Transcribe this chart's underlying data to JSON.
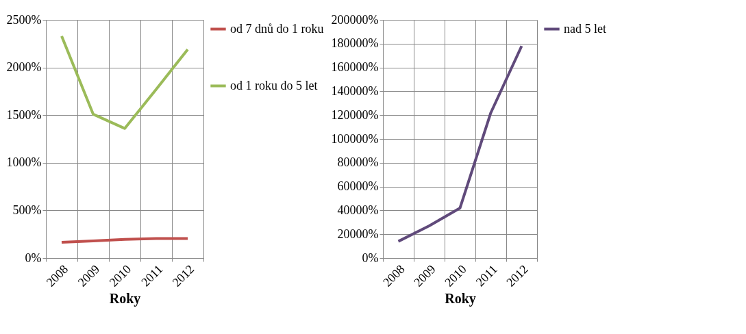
{
  "chart_data": [
    {
      "type": "line",
      "xlabel": "Roky",
      "categories": [
        "2008",
        "2009",
        "2010",
        "2011",
        "2012"
      ],
      "series": [
        {
          "name": "od 7 dnů do 1 roku",
          "color": "#c0504d",
          "values": [
            165,
            180,
            195,
            205,
            205
          ]
        },
        {
          "name": "od 1 roku do 5 let",
          "color": "#9bbb59",
          "values": [
            2330,
            1510,
            1360,
            1770,
            2190
          ]
        }
      ],
      "ylim": [
        0,
        2500
      ],
      "yticks": [
        {
          "value": 0,
          "label": "0%"
        },
        {
          "value": 500,
          "label": "500%"
        },
        {
          "value": 1000,
          "label": "1000%"
        },
        {
          "value": 1500,
          "label": "1500%"
        },
        {
          "value": 2000,
          "label": "2000%"
        },
        {
          "value": 2500,
          "label": "2500%"
        }
      ],
      "grid": true,
      "legend": "right",
      "marker": "none"
    },
    {
      "type": "line",
      "xlabel": "Roky",
      "categories": [
        "2008",
        "2009",
        "2010",
        "2011",
        "2012"
      ],
      "series": [
        {
          "name": "nad 5 let",
          "color": "#604a7b",
          "values": [
            14000,
            27000,
            42000,
            122000,
            178000
          ]
        }
      ],
      "ylim": [
        0,
        200000
      ],
      "yticks": [
        {
          "value": 0,
          "label": "0%"
        },
        {
          "value": 20000,
          "label": "20000%"
        },
        {
          "value": 40000,
          "label": "40000%"
        },
        {
          "value": 60000,
          "label": "60000%"
        },
        {
          "value": 80000,
          "label": "80000%"
        },
        {
          "value": 100000,
          "label": "100000%"
        },
        {
          "value": 120000,
          "label": "120000%"
        },
        {
          "value": 140000,
          "label": "140000%"
        },
        {
          "value": 160000,
          "label": "160000%"
        },
        {
          "value": 180000,
          "label": "180000%"
        },
        {
          "value": 200000,
          "label": "200000%"
        }
      ],
      "grid": true,
      "legend": "right",
      "marker": "none"
    }
  ]
}
